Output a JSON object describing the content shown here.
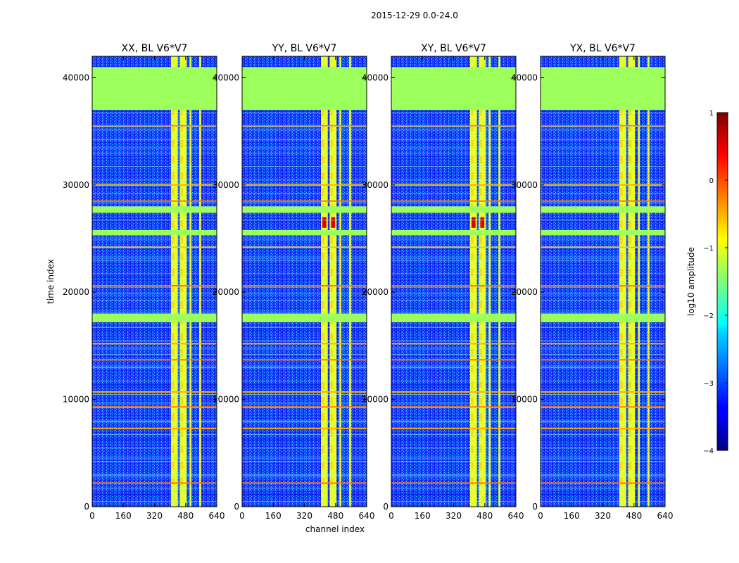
{
  "suptitle": "2015-12-29 0.0-24.0",
  "chart_data": {
    "type": "heatmap",
    "colormap": "jet",
    "panels": [
      {
        "title": "XX, BL V6*V7"
      },
      {
        "title": "YY, BL V6*V7"
      },
      {
        "title": "XY, BL V6*V7"
      },
      {
        "title": "YX, BL V6*V7"
      }
    ],
    "xlabel": "channel index",
    "ylabel": "time index",
    "xlim": [
      0,
      640
    ],
    "ylim": [
      0,
      42000
    ],
    "xticks": [
      0,
      160,
      320,
      480,
      640
    ],
    "yticks": [
      0,
      10000,
      20000,
      30000,
      40000
    ],
    "colorbar": {
      "label": "log10 amplitude",
      "range": [
        -4,
        1
      ],
      "ticks": [
        1,
        0,
        -1,
        -2,
        -3,
        -4
      ],
      "tick_labels": [
        "1",
        "0",
        "−1",
        "−2",
        "−3",
        "−4"
      ]
    },
    "masked_time_ranges": [
      [
        37000,
        41000
      ],
      [
        27400,
        28000
      ],
      [
        25300,
        25800
      ],
      [
        17200,
        18000
      ]
    ],
    "rfi_channel_ranges": [
      [
        405,
        440
      ],
      [
        450,
        485
      ],
      [
        500,
        510
      ],
      [
        550,
        560
      ]
    ],
    "flagged_rows": [
      2200,
      7300,
      9300,
      10700,
      13700,
      15200,
      20600,
      24200,
      28500,
      30000,
      35500
    ]
  }
}
